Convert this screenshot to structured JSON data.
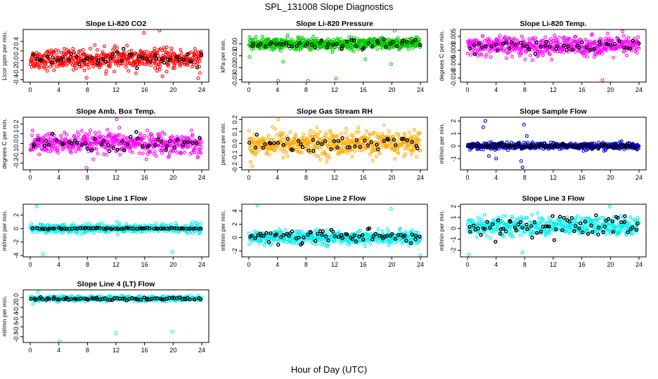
{
  "figure": {
    "title": "SPL_131008  Slope Diagnostics",
    "xlabel": "Hour of Day (UTC)"
  },
  "chart_data": [
    {
      "type": "scatter",
      "title": "Slope Li-820 CO2",
      "ylabel": "Licor ppm per min.",
      "xlim": [
        0,
        24
      ],
      "ylim": [
        -0.45,
        0.65
      ],
      "xticks": [
        "0",
        "4",
        "8",
        "12",
        "16",
        "20",
        "24"
      ],
      "yticks": [
        "-0.4",
        "-0.2",
        "0.0",
        "0.2",
        "0.4"
      ],
      "ytick_values": [
        -0.4,
        -0.2,
        0.0,
        0.2,
        0.4
      ],
      "grid": false,
      "series": [
        {
          "color": "#ff0000",
          "center": 0.03,
          "spread": 0.17,
          "points_per_hour": 22,
          "outliers": [
            [
              7.9,
              -0.36
            ],
            [
              15.9,
              0.58
            ],
            [
              18.1,
              0.63
            ],
            [
              18.5,
              -0.33
            ],
            [
              23.5,
              -0.37
            ]
          ]
        },
        {
          "color": "#000000",
          "center": 0.03,
          "spread": 0.12,
          "points_per_hour": 2,
          "outliers": []
        }
      ]
    },
    {
      "type": "scatter",
      "title": "Slope Li-820 Pressure",
      "ylabel": "kPa per min.",
      "xlim": [
        0,
        24
      ],
      "ylim": [
        -0.032,
        0.012
      ],
      "xticks": [
        "0",
        "4",
        "8",
        "12",
        "16",
        "20",
        "24"
      ],
      "yticks": [
        "-0.03",
        "-0.02",
        "-0.01",
        "0.00"
      ],
      "ytick_values": [
        -0.03,
        -0.02,
        -0.01,
        0.0
      ],
      "grid": false,
      "series": [
        {
          "color": "#00cc00",
          "center": 0.0,
          "spread": 0.004,
          "points_per_hour": 26,
          "outliers": [
            [
              0.1,
              -0.011
            ],
            [
              4.1,
              -0.031
            ],
            [
              4.8,
              -0.015
            ],
            [
              8.3,
              -0.031
            ],
            [
              12.2,
              -0.029
            ],
            [
              16.3,
              -0.013
            ],
            [
              19.9,
              -0.017
            ],
            [
              20.4,
              0.011
            ]
          ]
        },
        {
          "color": "#000000",
          "center": 0.0,
          "spread": 0.003,
          "points_per_hour": 2,
          "outliers": []
        }
      ]
    },
    {
      "type": "scatter",
      "title": "Slope Li-820 Temp.",
      "ylabel": "degrees C per min.",
      "xlim": [
        0,
        24
      ],
      "ylim": [
        -0.0115,
        0.0075
      ],
      "xticks": [
        "0",
        "4",
        "8",
        "12",
        "16",
        "20",
        "24"
      ],
      "yticks": [
        "-0.010",
        "-0.005",
        "0.000",
        "0.005"
      ],
      "ytick_values": [
        -0.01,
        -0.005,
        0.0,
        0.005
      ],
      "grid": false,
      "series": [
        {
          "color": "#ff00ff",
          "center": 0.0015,
          "spread": 0.0028,
          "points_per_hour": 22,
          "outliers": [
            [
              18.9,
              -0.0108
            ],
            [
              21.7,
              0.0068
            ]
          ]
        },
        {
          "color": "#000000",
          "center": 0.0015,
          "spread": 0.002,
          "points_per_hour": 2,
          "outliers": []
        }
      ]
    },
    {
      "type": "scatter",
      "title": "Slope Amb. Box Temp.",
      "ylabel": "degrees C per min.",
      "xlim": [
        0,
        24
      ],
      "ylim": [
        -0.27,
        0.27
      ],
      "xticks": [
        "0",
        "4",
        "8",
        "12",
        "16",
        "20",
        "24"
      ],
      "yticks": [
        "-0.2",
        "-0.1",
        "0.0",
        "0.1",
        "0.2"
      ],
      "ytick_values": [
        -0.2,
        -0.1,
        0.0,
        0.1,
        0.2
      ],
      "grid": false,
      "series": [
        {
          "color": "#ff00ff",
          "center": 0.0,
          "spread": 0.09,
          "points_per_hour": 22,
          "outliers": [
            [
              7.9,
              -0.25
            ],
            [
              12.1,
              0.25
            ]
          ]
        },
        {
          "color": "#000000",
          "center": 0.0,
          "spread": 0.07,
          "points_per_hour": 2,
          "outliers": []
        }
      ]
    },
    {
      "type": "scatter",
      "title": "Slope Gas Stream RH",
      "ylabel": "percent per min.",
      "xlim": [
        0,
        24
      ],
      "ylim": [
        -0.22,
        0.22
      ],
      "xticks": [
        "0",
        "4",
        "8",
        "12",
        "16",
        "20",
        "24"
      ],
      "yticks": [
        "-0.2",
        "-0.1",
        "0.0",
        "0.1",
        "0.2"
      ],
      "ytick_values": [
        -0.2,
        -0.1,
        0.0,
        0.1,
        0.2
      ],
      "grid": false,
      "series": [
        {
          "color": "#ffaa00",
          "center": 0.0,
          "spread": 0.085,
          "points_per_hour": 22,
          "outliers": [
            [
              0.5,
              -0.19
            ],
            [
              4.1,
              0.2
            ]
          ]
        },
        {
          "color": "#000000",
          "center": 0.0,
          "spread": 0.06,
          "points_per_hour": 2,
          "outliers": []
        }
      ]
    },
    {
      "type": "scatter",
      "title": "Slope Sample Flow",
      "ylabel": "ml/min per min.",
      "xlim": [
        0,
        24
      ],
      "ylim": [
        -1.9,
        2.3
      ],
      "xticks": [
        "0",
        "4",
        "8",
        "12",
        "16",
        "20",
        "24"
      ],
      "yticks": [
        "-1",
        "0",
        "1",
        "2"
      ],
      "ytick_values": [
        -1,
        0,
        1,
        2
      ],
      "grid": false,
      "series": [
        {
          "color": "#0000cc",
          "center": 0.0,
          "spread": 0.22,
          "points_per_hour": 22,
          "outliers": [
            [
              2.2,
              1.5
            ],
            [
              2.5,
              2.0
            ],
            [
              3.0,
              -0.8
            ],
            [
              4.0,
              -1.0
            ],
            [
              7.5,
              -1.2
            ],
            [
              7.7,
              -1.7
            ],
            [
              7.9,
              1.7
            ],
            [
              8.3,
              0.8
            ]
          ]
        },
        {
          "color": "#000000",
          "center": 0.0,
          "spread": 0.15,
          "points_per_hour": 3,
          "outliers": []
        }
      ]
    },
    {
      "type": "scatter",
      "title": "Slope Line 1 Flow",
      "ylabel": "ml/min per min.",
      "xlim": [
        0,
        24
      ],
      "ylim": [
        -4.2,
        3.6
      ],
      "xticks": [
        "0",
        "4",
        "8",
        "12",
        "16",
        "20",
        "24"
      ],
      "yticks": [
        "-4",
        "-2",
        "0",
        "2"
      ],
      "ytick_values": [
        -4,
        -2,
        0,
        2
      ],
      "grid": false,
      "series": [
        {
          "color": "#00eeee",
          "center": 0.0,
          "spread": 0.55,
          "points_per_hour": 20,
          "outliers": [
            [
              0.9,
              3.3
            ],
            [
              19.9,
              -3.5
            ],
            [
              1.8,
              -3.8
            ]
          ]
        },
        {
          "color": "#000000",
          "center": 0.0,
          "spread": 0.1,
          "points_per_hour": 3,
          "outliers": []
        }
      ]
    },
    {
      "type": "scatter",
      "title": "Slope Line 2 Flow",
      "ylabel": "ml/min per min.",
      "xlim": [
        0,
        24
      ],
      "ylim": [
        -2.9,
        5.0
      ],
      "xticks": [
        "0",
        "4",
        "8",
        "12",
        "16",
        "20",
        "24"
      ],
      "yticks": [
        "-2",
        "0",
        "2",
        "4"
      ],
      "ytick_values": [
        -2,
        0,
        2,
        4
      ],
      "grid": false,
      "series": [
        {
          "color": "#00eeee",
          "center": 0.0,
          "spread": 0.8,
          "points_per_hour": 20,
          "outliers": [
            [
              1.2,
              4.8
            ],
            [
              19.9,
              4.3
            ],
            [
              24.0,
              -2.7
            ]
          ]
        },
        {
          "color": "#000000",
          "center": 0.2,
          "spread": 1.0,
          "points_per_hour": 3,
          "outliers": []
        }
      ]
    },
    {
      "type": "scatter",
      "title": "Slope Line 3 Flow",
      "ylabel": "ml/min per min.",
      "xlim": [
        0,
        24
      ],
      "ylim": [
        -2.6,
        2.2
      ],
      "xticks": [
        "0",
        "4",
        "8",
        "12",
        "16",
        "20",
        "24"
      ],
      "yticks": [
        "-2",
        "-1",
        "0",
        "1",
        "2"
      ],
      "ytick_values": [
        -2,
        -1,
        0,
        1,
        2
      ],
      "grid": false,
      "series": [
        {
          "color": "#00eeee",
          "center": 0.2,
          "spread": 0.7,
          "points_per_hour": 20,
          "outliers": [
            [
              0.2,
              -2.4
            ],
            [
              7.7,
              -2.2
            ],
            [
              19.9,
              2.0
            ]
          ]
        },
        {
          "color": "#000000",
          "center": 0.2,
          "spread": 0.8,
          "points_per_hour": 3,
          "outliers": []
        }
      ]
    },
    {
      "type": "scatter",
      "title": "Slope Line 4 (LT) Flow",
      "ylabel": "ml/min per min.",
      "xlim": [
        0,
        24
      ],
      "ylim": [
        -0.92,
        0.16
      ],
      "xticks": [
        "0",
        "4",
        "8",
        "12",
        "16",
        "20",
        "24"
      ],
      "yticks": [
        "-0.8",
        "-0.6",
        "-0.4",
        "-0.2",
        "0.0"
      ],
      "ytick_values": [
        -0.8,
        -0.6,
        -0.4,
        -0.2,
        0.0
      ],
      "grid": false,
      "series": [
        {
          "color": "#00eeee",
          "center": -0.02,
          "spread": 0.04,
          "points_per_hour": 22,
          "outliers": [
            [
              1.1,
              0.12
            ],
            [
              4.1,
              -0.9
            ],
            [
              12.0,
              -0.73
            ],
            [
              19.9,
              -0.7
            ],
            [
              0.4,
              -0.13
            ]
          ]
        },
        {
          "color": "#000000",
          "center": -0.02,
          "spread": 0.025,
          "points_per_hour": 3,
          "outliers": []
        }
      ]
    }
  ]
}
